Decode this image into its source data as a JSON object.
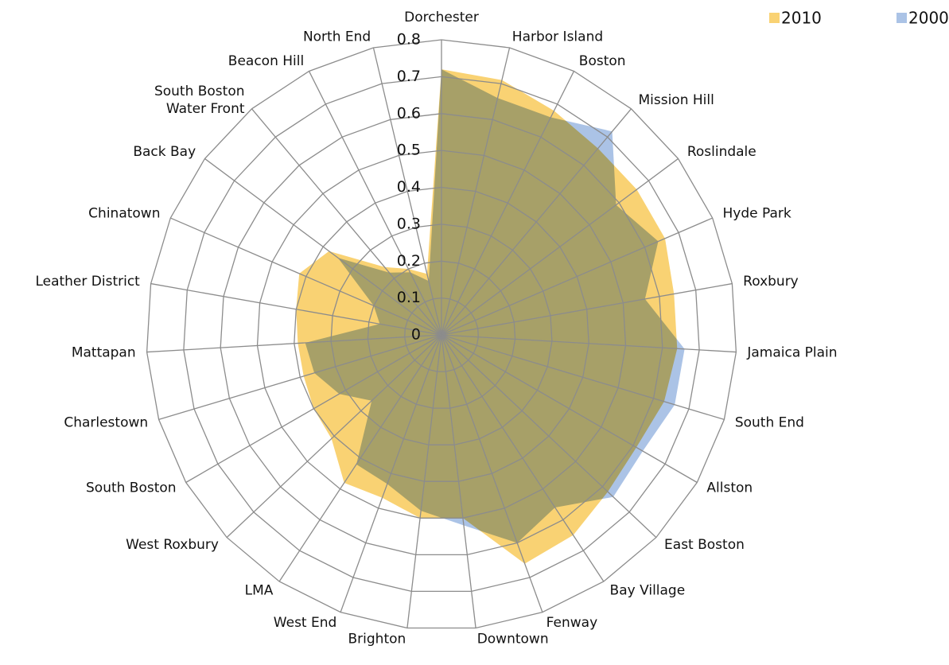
{
  "chart_data": {
    "type": "radar",
    "categories": [
      "Dorchester",
      "Harbor Island",
      "Boston",
      "Mission Hill",
      "Roslindale",
      "Hyde Park",
      "Roxbury",
      "Jamaica Plain",
      "South End",
      "Allston",
      "East Boston",
      "Bay Village",
      "Fenway",
      "Downtown",
      "Brighton",
      "West End",
      "LMA",
      "West Roxbury",
      "South Boston",
      "Charlestown",
      "Mattapan",
      "Leather District",
      "Chinatown",
      "Back Bay",
      "South Boston\nWater Front",
      "Beacon Hill",
      "North End"
    ],
    "series": [
      {
        "name": "2010",
        "color": "#f9d273",
        "values": [
          0.72,
          0.71,
          0.68,
          0.66,
          0.66,
          0.66,
          0.64,
          0.64,
          0.63,
          0.61,
          0.62,
          0.65,
          0.66,
          0.5,
          0.5,
          0.47,
          0.48,
          0.41,
          0.4,
          0.39,
          0.39,
          0.4,
          0.42,
          0.38,
          0.24,
          0.2,
          0.17
        ]
      },
      {
        "name": "2000",
        "color": "#abc3e6",
        "values": [
          0.72,
          0.66,
          0.66,
          0.72,
          0.59,
          0.64,
          0.56,
          0.66,
          0.66,
          0.63,
          0.64,
          0.56,
          0.6,
          0.52,
          0.48,
          0.43,
          0.42,
          0.26,
          0.32,
          0.36,
          0.37,
          0.17,
          0.2,
          0.35,
          0.22,
          0.19,
          0.15
        ]
      }
    ],
    "ylim": [
      0,
      0.8
    ],
    "yticks": [
      0,
      0.1,
      0.2,
      0.3,
      0.4,
      0.5,
      0.6,
      0.7,
      0.8
    ],
    "grid": true,
    "legend": "top-right"
  }
}
